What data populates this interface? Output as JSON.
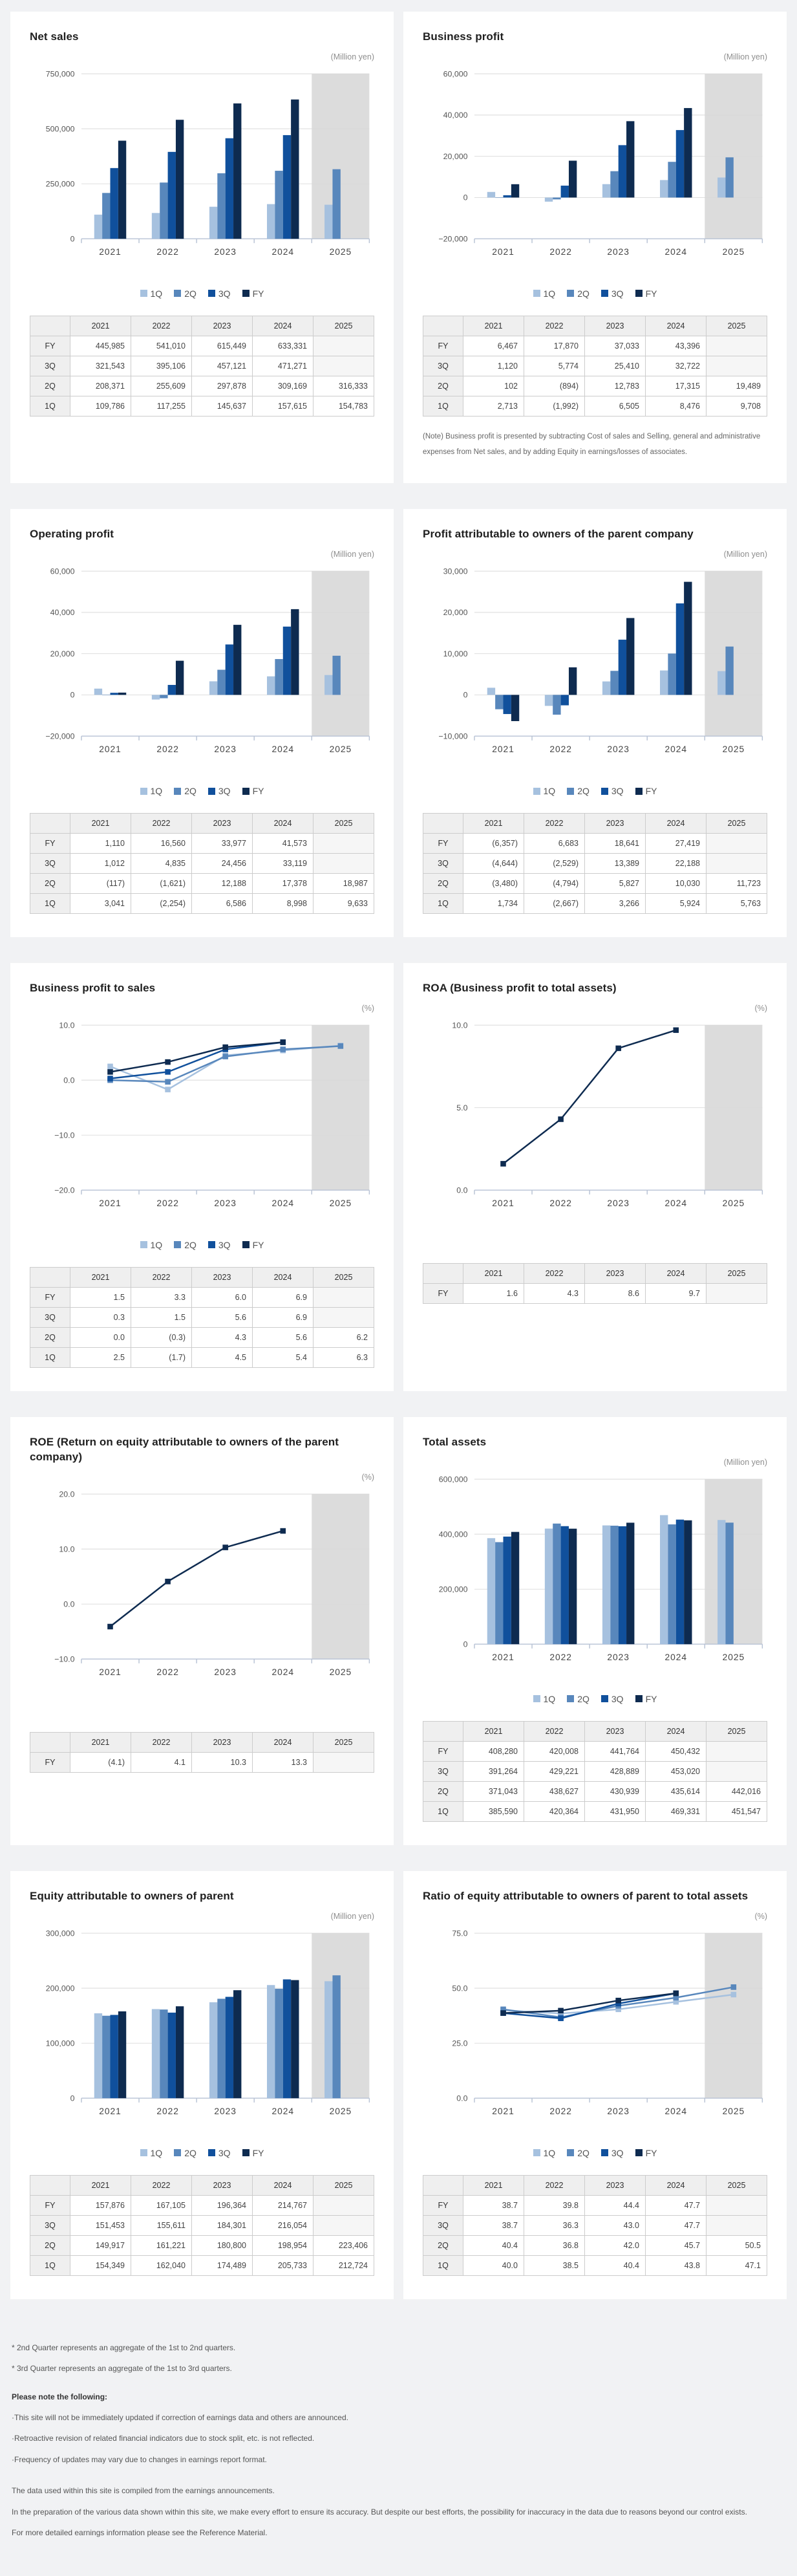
{
  "years": [
    "2021",
    "2022",
    "2023",
    "2024",
    "2025"
  ],
  "colors": {
    "band": "#dcdcdc",
    "grid": "#d9d9d9",
    "axis": "#b7c2d4",
    "tick_text": "#555555",
    "year_text": "#444444",
    "series": {
      "1Q": "#a6c1df",
      "2Q": "#5887bc",
      "3Q": "#10509c",
      "FY": "#0e2b50"
    }
  },
  "chart_data": [
    {
      "type": "bar",
      "title": "Net sales",
      "unit": "(Million yen)",
      "ymin": 0,
      "ymax": 750000,
      "ystep": 250000,
      "decimals": 0,
      "categories": [
        "2021",
        "2022",
        "2023",
        "2024",
        "2025"
      ],
      "series": [
        {
          "name": "1Q",
          "values": [
            109786,
            117255,
            145637,
            157615,
            154783
          ]
        },
        {
          "name": "2Q",
          "values": [
            208371,
            255609,
            297878,
            309169,
            316333
          ]
        },
        {
          "name": "3Q",
          "values": [
            321543,
            395106,
            457121,
            471271,
            null
          ]
        },
        {
          "name": "FY",
          "values": [
            445985,
            541010,
            615449,
            633331,
            null
          ]
        }
      ],
      "table_rows": [
        {
          "label": "FY",
          "values": [
            "445,985",
            "541,010",
            "615,449",
            "633,331",
            ""
          ]
        },
        {
          "label": "3Q",
          "values": [
            "321,543",
            "395,106",
            "457,121",
            "471,271",
            ""
          ]
        },
        {
          "label": "2Q",
          "values": [
            "208,371",
            "255,609",
            "297,878",
            "309,169",
            "316,333"
          ]
        },
        {
          "label": "1Q",
          "values": [
            "109,786",
            "117,255",
            "145,637",
            "157,615",
            "154,783"
          ]
        }
      ]
    },
    {
      "type": "bar",
      "title": "Business profit",
      "unit": "(Million yen)",
      "ymin": -20000,
      "ymax": 60000,
      "ystep": 20000,
      "decimals": 0,
      "categories": [
        "2021",
        "2022",
        "2023",
        "2024",
        "2025"
      ],
      "series": [
        {
          "name": "1Q",
          "values": [
            2713,
            -1992,
            6505,
            8476,
            9708
          ]
        },
        {
          "name": "2Q",
          "values": [
            102,
            -894,
            12783,
            17315,
            19489
          ]
        },
        {
          "name": "3Q",
          "values": [
            1120,
            5774,
            25410,
            32722,
            null
          ]
        },
        {
          "name": "FY",
          "values": [
            6467,
            17870,
            37033,
            43396,
            null
          ]
        }
      ],
      "table_rows": [
        {
          "label": "FY",
          "values": [
            "6,467",
            "17,870",
            "37,033",
            "43,396",
            ""
          ]
        },
        {
          "label": "3Q",
          "values": [
            "1,120",
            "5,774",
            "25,410",
            "32,722",
            ""
          ]
        },
        {
          "label": "2Q",
          "values": [
            "102",
            "(894)",
            "12,783",
            "17,315",
            "19,489"
          ]
        },
        {
          "label": "1Q",
          "values": [
            "2,713",
            "(1,992)",
            "6,505",
            "8,476",
            "9,708"
          ]
        }
      ],
      "note": "(Note) Business profit is presented by subtracting Cost of sales and Selling, general and administrative expenses from Net sales, and by adding Equity in earnings/losses of associates."
    },
    {
      "type": "bar",
      "title": "Operating profit",
      "unit": "(Million yen)",
      "ymin": -20000,
      "ymax": 60000,
      "ystep": 20000,
      "decimals": 0,
      "categories": [
        "2021",
        "2022",
        "2023",
        "2024",
        "2025"
      ],
      "series": [
        {
          "name": "1Q",
          "values": [
            3041,
            -2254,
            6586,
            8998,
            9633
          ]
        },
        {
          "name": "2Q",
          "values": [
            -117,
            -1621,
            12188,
            17378,
            18987
          ]
        },
        {
          "name": "3Q",
          "values": [
            1012,
            4835,
            24456,
            33119,
            null
          ]
        },
        {
          "name": "FY",
          "values": [
            1110,
            16560,
            33977,
            41573,
            null
          ]
        }
      ],
      "table_rows": [
        {
          "label": "FY",
          "values": [
            "1,110",
            "16,560",
            "33,977",
            "41,573",
            ""
          ]
        },
        {
          "label": "3Q",
          "values": [
            "1,012",
            "4,835",
            "24,456",
            "33,119",
            ""
          ]
        },
        {
          "label": "2Q",
          "values": [
            "(117)",
            "(1,621)",
            "12,188",
            "17,378",
            "18,987"
          ]
        },
        {
          "label": "1Q",
          "values": [
            "3,041",
            "(2,254)",
            "6,586",
            "8,998",
            "9,633"
          ]
        }
      ]
    },
    {
      "type": "bar",
      "title": "Profit attributable to owners of the parent company",
      "unit": "(Million yen)",
      "ymin": -10000,
      "ymax": 30000,
      "ystep": 10000,
      "decimals": 0,
      "categories": [
        "2021",
        "2022",
        "2023",
        "2024",
        "2025"
      ],
      "series": [
        {
          "name": "1Q",
          "values": [
            1734,
            -2667,
            3266,
            5924,
            5763
          ]
        },
        {
          "name": "2Q",
          "values": [
            -3480,
            -4794,
            5827,
            10030,
            11723
          ]
        },
        {
          "name": "3Q",
          "values": [
            -4644,
            -2529,
            13389,
            22188,
            null
          ]
        },
        {
          "name": "FY",
          "values": [
            -6357,
            6683,
            18641,
            27419,
            null
          ]
        }
      ],
      "table_rows": [
        {
          "label": "FY",
          "values": [
            "(6,357)",
            "6,683",
            "18,641",
            "27,419",
            ""
          ]
        },
        {
          "label": "3Q",
          "values": [
            "(4,644)",
            "(2,529)",
            "13,389",
            "22,188",
            ""
          ]
        },
        {
          "label": "2Q",
          "values": [
            "(3,480)",
            "(4,794)",
            "5,827",
            "10,030",
            "11,723"
          ]
        },
        {
          "label": "1Q",
          "values": [
            "1,734",
            "(2,667)",
            "3,266",
            "5,924",
            "5,763"
          ]
        }
      ]
    },
    {
      "type": "line",
      "title": "Business profit to sales",
      "unit": "(%)",
      "ymin": -20,
      "ymax": 10,
      "ystep": 10,
      "decimals": 1,
      "categories": [
        "2021",
        "2022",
        "2023",
        "2024",
        "2025"
      ],
      "series": [
        {
          "name": "1Q",
          "values": [
            2.5,
            -1.7,
            4.5,
            5.4,
            6.3
          ]
        },
        {
          "name": "2Q",
          "values": [
            0.0,
            -0.3,
            4.3,
            5.6,
            6.2
          ]
        },
        {
          "name": "3Q",
          "values": [
            0.3,
            1.5,
            5.6,
            6.9,
            null
          ]
        },
        {
          "name": "FY",
          "values": [
            1.5,
            3.3,
            6.0,
            6.9,
            null
          ]
        }
      ],
      "table_rows": [
        {
          "label": "FY",
          "values": [
            "1.5",
            "3.3",
            "6.0",
            "6.9",
            ""
          ]
        },
        {
          "label": "3Q",
          "values": [
            "0.3",
            "1.5",
            "5.6",
            "6.9",
            ""
          ]
        },
        {
          "label": "2Q",
          "values": [
            "0.0",
            "(0.3)",
            "4.3",
            "5.6",
            "6.2"
          ]
        },
        {
          "label": "1Q",
          "values": [
            "2.5",
            "(1.7)",
            "4.5",
            "5.4",
            "6.3"
          ]
        }
      ]
    },
    {
      "type": "line",
      "title": "ROA (Business profit to total assets)",
      "unit": "(%)",
      "ymin": 0,
      "ymax": 10,
      "ystep": 5,
      "decimals": 1,
      "categories": [
        "2021",
        "2022",
        "2023",
        "2024",
        "2025"
      ],
      "series": [
        {
          "name": "FY",
          "values": [
            1.6,
            4.3,
            8.6,
            9.7,
            null
          ]
        }
      ],
      "table_rows": [
        {
          "label": "FY",
          "values": [
            "1.6",
            "4.3",
            "8.6",
            "9.7",
            ""
          ]
        }
      ]
    },
    {
      "type": "line",
      "title": "ROE (Return on equity attributable to owners of the parent company)",
      "unit": "(%)",
      "ymin": -10,
      "ymax": 20,
      "ystep": 10,
      "decimals": 1,
      "categories": [
        "2021",
        "2022",
        "2023",
        "2024",
        "2025"
      ],
      "series": [
        {
          "name": "FY",
          "values": [
            -4.1,
            4.1,
            10.3,
            13.3,
            null
          ]
        }
      ],
      "table_rows": [
        {
          "label": "FY",
          "values": [
            "(4.1)",
            "4.1",
            "10.3",
            "13.3",
            ""
          ]
        }
      ]
    },
    {
      "type": "bar",
      "title": "Total assets",
      "unit": "(Million yen)",
      "ymin": 0,
      "ymax": 600000,
      "ystep": 200000,
      "decimals": 0,
      "categories": [
        "2021",
        "2022",
        "2023",
        "2024",
        "2025"
      ],
      "series": [
        {
          "name": "1Q",
          "values": [
            385590,
            420364,
            431950,
            469331,
            451547
          ]
        },
        {
          "name": "2Q",
          "values": [
            371043,
            438627,
            430939,
            435614,
            442016
          ]
        },
        {
          "name": "3Q",
          "values": [
            391264,
            429221,
            428889,
            453020,
            null
          ]
        },
        {
          "name": "FY",
          "values": [
            408280,
            420008,
            441764,
            450432,
            null
          ]
        }
      ],
      "table_rows": [
        {
          "label": "FY",
          "values": [
            "408,280",
            "420,008",
            "441,764",
            "450,432",
            ""
          ]
        },
        {
          "label": "3Q",
          "values": [
            "391,264",
            "429,221",
            "428,889",
            "453,020",
            ""
          ]
        },
        {
          "label": "2Q",
          "values": [
            "371,043",
            "438,627",
            "430,939",
            "435,614",
            "442,016"
          ]
        },
        {
          "label": "1Q",
          "values": [
            "385,590",
            "420,364",
            "431,950",
            "469,331",
            "451,547"
          ]
        }
      ]
    },
    {
      "type": "bar",
      "title": "Equity attributable to owners of parent",
      "unit": "(Million yen)",
      "ymin": 0,
      "ymax": 300000,
      "ystep": 100000,
      "decimals": 0,
      "categories": [
        "2021",
        "2022",
        "2023",
        "2024",
        "2025"
      ],
      "series": [
        {
          "name": "1Q",
          "values": [
            154349,
            162040,
            174489,
            205733,
            212724
          ]
        },
        {
          "name": "2Q",
          "values": [
            149917,
            161221,
            180800,
            198954,
            223406
          ]
        },
        {
          "name": "3Q",
          "values": [
            151453,
            155611,
            184301,
            216054,
            null
          ]
        },
        {
          "name": "FY",
          "values": [
            157876,
            167105,
            196364,
            214767,
            null
          ]
        }
      ],
      "table_rows": [
        {
          "label": "FY",
          "values": [
            "157,876",
            "167,105",
            "196,364",
            "214,767",
            ""
          ]
        },
        {
          "label": "3Q",
          "values": [
            "151,453",
            "155,611",
            "184,301",
            "216,054",
            ""
          ]
        },
        {
          "label": "2Q",
          "values": [
            "149,917",
            "161,221",
            "180,800",
            "198,954",
            "223,406"
          ]
        },
        {
          "label": "1Q",
          "values": [
            "154,349",
            "162,040",
            "174,489",
            "205,733",
            "212,724"
          ]
        }
      ]
    },
    {
      "type": "line",
      "title": "Ratio of equity attributable to owners of parent to total assets",
      "unit": "(%)",
      "ymin": 0,
      "ymax": 75,
      "ystep": 25,
      "decimals": 1,
      "categories": [
        "2021",
        "2022",
        "2023",
        "2024",
        "2025"
      ],
      "series": [
        {
          "name": "1Q",
          "values": [
            40.0,
            38.5,
            40.4,
            43.8,
            47.1
          ]
        },
        {
          "name": "2Q",
          "values": [
            40.4,
            36.8,
            42.0,
            45.7,
            50.5
          ]
        },
        {
          "name": "3Q",
          "values": [
            38.7,
            36.3,
            43.0,
            47.7,
            null
          ]
        },
        {
          "name": "FY",
          "values": [
            38.7,
            39.8,
            44.4,
            47.7,
            null
          ]
        }
      ],
      "table_rows": [
        {
          "label": "FY",
          "values": [
            "38.7",
            "39.8",
            "44.4",
            "47.7",
            ""
          ]
        },
        {
          "label": "3Q",
          "values": [
            "38.7",
            "36.3",
            "43.0",
            "47.7",
            ""
          ]
        },
        {
          "label": "2Q",
          "values": [
            "40.4",
            "36.8",
            "42.0",
            "45.7",
            "50.5"
          ]
        },
        {
          "label": "1Q",
          "values": [
            "40.0",
            "38.5",
            "40.4",
            "43.8",
            "47.1"
          ]
        }
      ]
    }
  ],
  "footer": {
    "asterisks": [
      "* 2nd Quarter represents an aggregate of the 1st to 2nd quarters.",
      "* 3rd Quarter represents an aggregate of the 1st to 3rd quarters."
    ],
    "heading": "Please note the following:",
    "bullets": [
      "·This site will not be immediately updated if correction of earnings data and others are announced.",
      "·Retroactive revision of related financial indicators due to stock split, etc. is not reflected.",
      "·Frequency of updates may vary due to changes in earnings report format."
    ],
    "paragraphs": [
      "The data used within this site is compiled from the earnings announcements.",
      "In the preparation of the various data shown within this site, we make every effort to ensure its accuracy. But despite our best efforts, the possibility for inaccuracy in the data due to reasons beyond our control exists.",
      "For more detailed earnings information please see the Reference Material."
    ]
  }
}
